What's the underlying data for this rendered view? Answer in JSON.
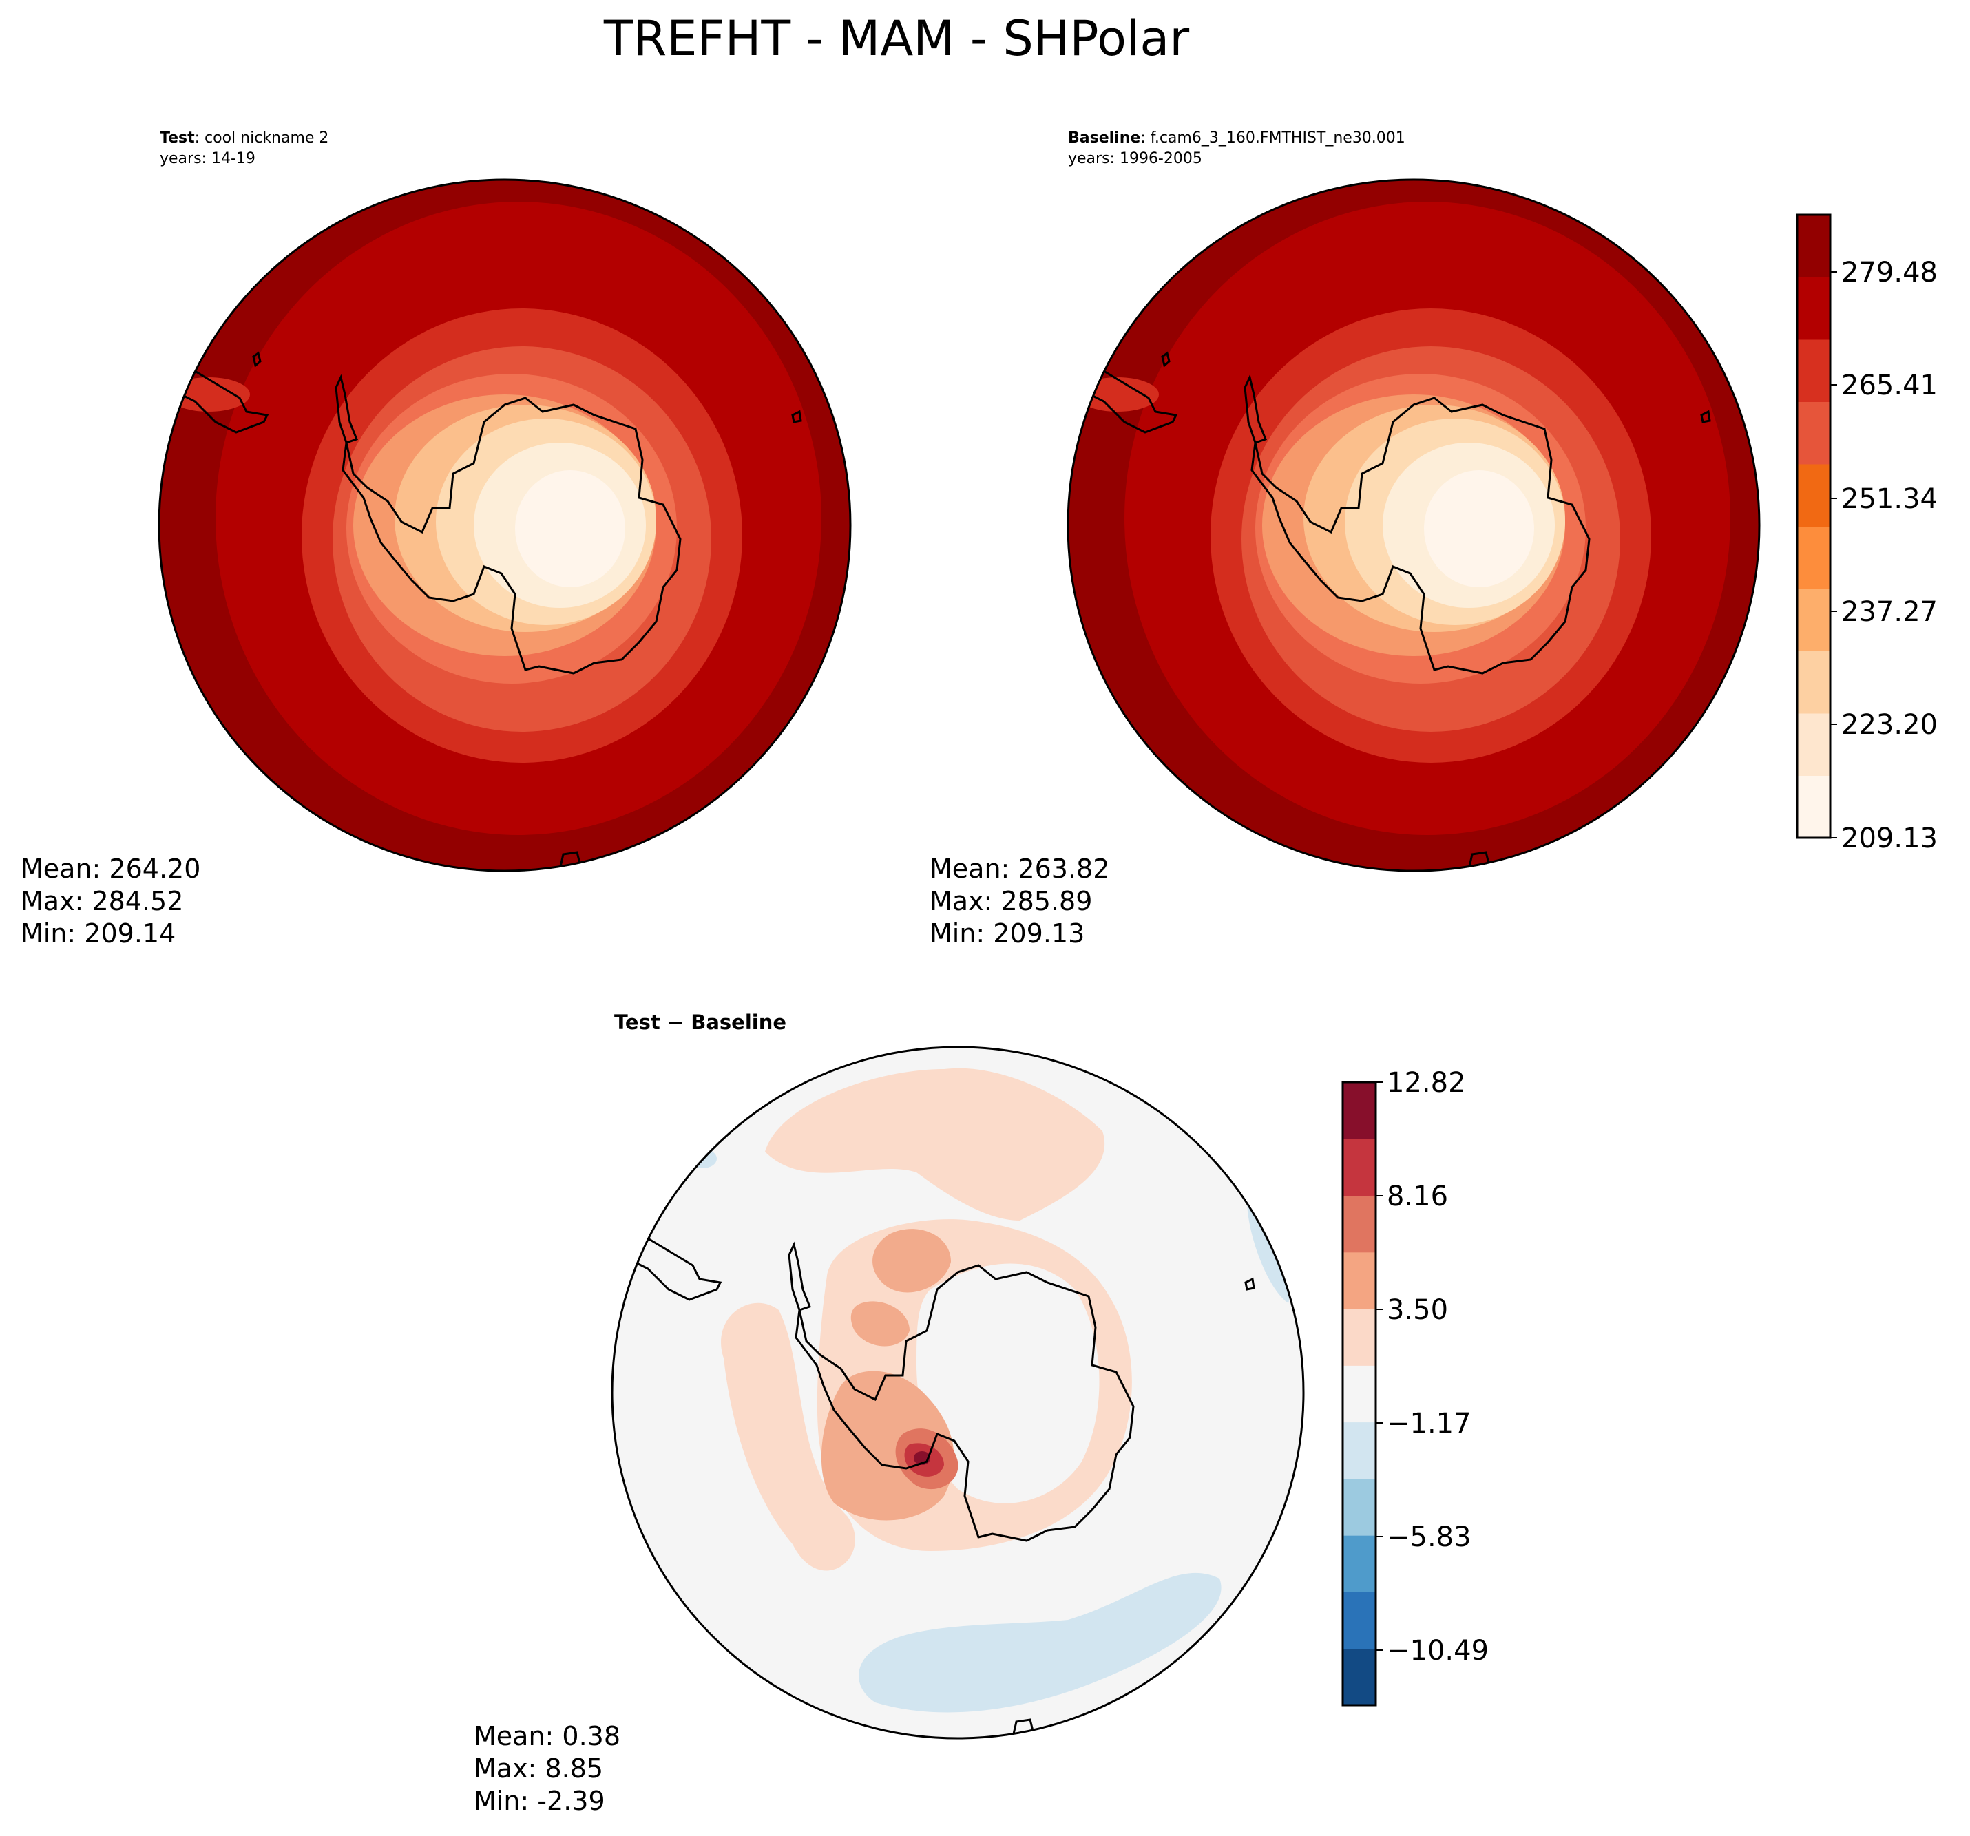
{
  "figure": {
    "title": "TREFHT - MAM - SHPolar"
  },
  "panels": [
    {
      "id": "test",
      "header_bold": "Test",
      "header_rest": ": cool nickname 2",
      "years": "years: 14-19",
      "stats": {
        "mean": "Mean: 264.20",
        "max": "Max: 284.52",
        "min": "Min: 209.14"
      }
    },
    {
      "id": "baseline",
      "header_bold": "Baseline",
      "header_rest": ": f.cam6_3_160.FMTHIST_ne30.001",
      "years": "years: 1996-2005",
      "stats": {
        "mean": "Mean: 263.82",
        "max": "Max: 285.89",
        "min": "Min: 209.13"
      }
    },
    {
      "id": "diff",
      "header_bold": "Test − Baseline",
      "stats": {
        "mean": "Mean:  0.38",
        "max": "Max:  8.85",
        "min": "Min: -2.39"
      }
    }
  ],
  "colorbar_abs": {
    "ticks": [
      "279.48",
      "265.41",
      "251.34",
      "237.27",
      "223.20",
      "209.13"
    ],
    "colors": [
      "#fff5eb",
      "#fee6ce",
      "#fdd0a2",
      "#fdae6b",
      "#fd8d3c",
      "#f16913",
      "#e6553a",
      "#d7301f",
      "#b30000",
      "#930000"
    ]
  },
  "colorbar_diff": {
    "ticks": [
      "12.82",
      "8.16",
      "3.50",
      "−1.17",
      "−5.83",
      "−10.49"
    ],
    "colors": [
      "#124a84",
      "#2a73b8",
      "#4f9bcb",
      "#9ccae0",
      "#d2e5f0",
      "#f5f5f5",
      "#fbd9c8",
      "#f4a582",
      "#e07560",
      "#c5353e",
      "#870f2b"
    ]
  },
  "map_colors": {
    "abs_levels": [
      "#930000",
      "#b30000",
      "#d42d1e",
      "#e4533a",
      "#f07051",
      "#f6996b",
      "#fbbf8c",
      "#fddbb3",
      "#fdeed9",
      "#fff5eb"
    ],
    "diff_bg": "#f5f5f5",
    "diff_pos1": "#fbdbca",
    "diff_pos2": "#f2ab8c",
    "diff_pos3": "#e07560",
    "diff_pos4": "#c5353e",
    "diff_pos5": "#870f2b",
    "diff_neg1": "#d2e5f0",
    "coastline": "#000000"
  }
}
